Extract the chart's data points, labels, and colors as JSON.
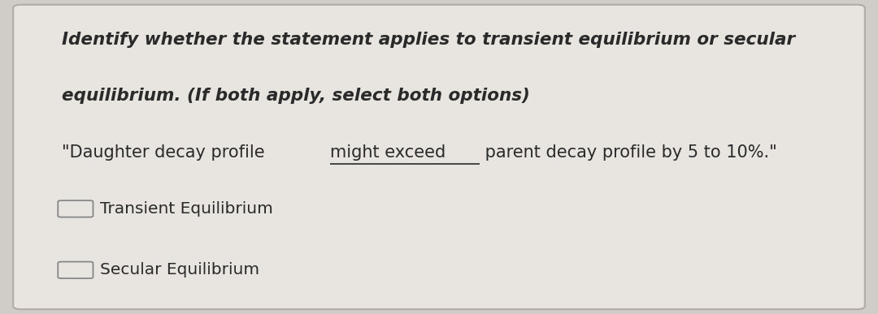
{
  "background_color": "#d0cdc8",
  "card_color": "#e8e5e0",
  "border_color": "#b0aca5",
  "text_color": "#2a2a2a",
  "title_line1": "Identify whether the statement applies to transient equilibrium or secular",
  "title_line2": "equilibrium. (If both apply, select both options)",
  "part1": "\"Daughter decay profile ",
  "part2": "might exceed",
  "part3": " parent decay profile by 5 to 10%.\"",
  "option1": "Transient Equilibrium",
  "option2": "Secular Equilibrium",
  "checkbox_color": "#e8e5e0",
  "checkbox_border": "#888888",
  "title_fontsize": 15.5,
  "statement_fontsize": 15.0,
  "option_fontsize": 14.5
}
